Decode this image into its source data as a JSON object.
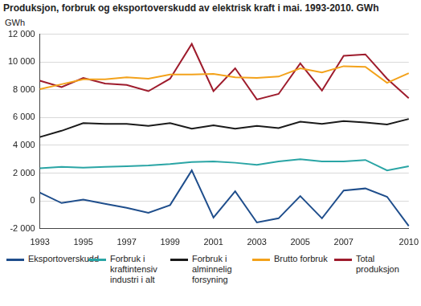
{
  "chart_data": {
    "type": "line",
    "title": "Produksjon, forbruk og eksportoverskudd av elektrisk kraft i mai. 1993-2010. GWh",
    "y_label": "GWh",
    "categories": [
      "1993",
      null,
      "1995",
      null,
      "1997",
      null,
      "1999",
      null,
      "2001",
      null,
      "2003",
      null,
      "2005",
      null,
      "2007",
      null,
      null,
      "2010"
    ],
    "series": [
      {
        "name": "Eksportoverskudd",
        "color": "#1f4e8c",
        "values": [
          600,
          -150,
          100,
          -200,
          -500,
          -850,
          -300,
          2200,
          -1200,
          700,
          -1550,
          -1250,
          350,
          -1250,
          750,
          900,
          300,
          -1800
        ]
      },
      {
        "name": "Forbruk i kraftintensiv industri i alt",
        "color": "#2aa5a5",
        "values": [
          2350,
          2450,
          2400,
          2450,
          2500,
          2550,
          2650,
          2800,
          2850,
          2750,
          2600,
          2850,
          3000,
          2850,
          2850,
          2950,
          2200,
          2500
        ]
      },
      {
        "name": "Forbruk i alminnelig forsyning",
        "color": "#1a1a1a",
        "values": [
          4600,
          5050,
          5600,
          5550,
          5550,
          5400,
          5600,
          5200,
          5450,
          5200,
          5400,
          5250,
          5700,
          5550,
          5750,
          5650,
          5500,
          5900
        ]
      },
      {
        "name": "Brutto forbruk",
        "color": "#f3a21b",
        "values": [
          8050,
          8400,
          8750,
          8750,
          8900,
          8800,
          9100,
          9100,
          9150,
          8900,
          8850,
          8950,
          9550,
          9250,
          9700,
          9650,
          8500,
          9200
        ]
      },
      {
        "name": "Total produksjon",
        "color": "#9e1c2d",
        "values": [
          8650,
          8200,
          8850,
          8450,
          8350,
          7900,
          8800,
          11300,
          7900,
          9550,
          7300,
          7700,
          9900,
          7950,
          10450,
          10550,
          8800,
          7400
        ]
      }
    ],
    "ylim": [
      -2000,
      12000
    ],
    "yticks": [
      {
        "value": -2000,
        "label": "-2 000"
      },
      0,
      {
        "value": 2000,
        "label": "2 000"
      },
      {
        "value": 4000,
        "label": "4 000"
      },
      {
        "value": 6000,
        "label": "6 000"
      },
      {
        "value": 8000,
        "label": "8 000"
      },
      {
        "value": 10000,
        "label": "10 000"
      },
      {
        "value": 12000,
        "label": "12 000"
      }
    ],
    "grid": true,
    "legend": "bottom"
  }
}
